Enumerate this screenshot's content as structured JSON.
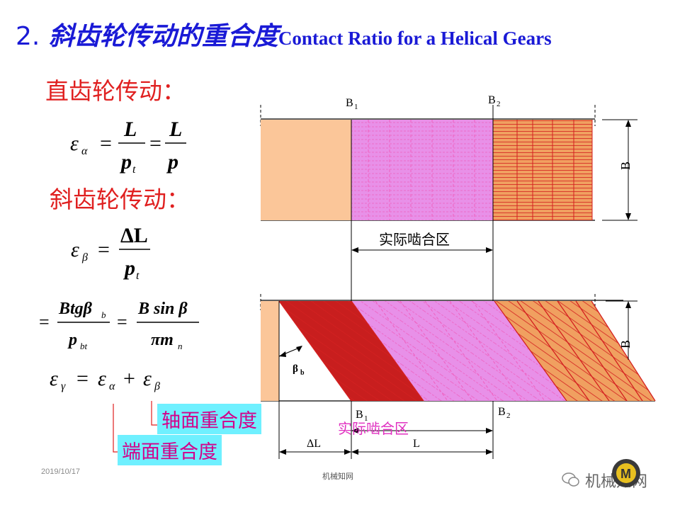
{
  "slide": {
    "title_num": "2.",
    "title_cn": "斜齿轮传动的重合度",
    "title_en": "Contact Ratio for a Helical Gears",
    "spur_heading": "直齿轮传动：",
    "helical_heading": "斜齿轮传动：",
    "eq1": {
      "lhs": "ε",
      "lhs_sub": "α",
      "n1": "L",
      "d1": "p",
      "d1_sub": "t",
      "n2": "L",
      "d2": "p"
    },
    "eq2": {
      "lhs": "ε",
      "lhs_sub": "β",
      "n1": "ΔL",
      "d1": "p",
      "d1_sub": "t"
    },
    "eq3": {
      "n1": "Btgβ",
      "n1_sub": "b",
      "d1": "p",
      "d1_sub": "bt",
      "n2": "B sin β",
      "d2": "πm",
      "d2_sub": "n"
    },
    "eq4": {
      "a": "ε",
      "a_sub": "γ",
      "b": "ε",
      "b_sub": "α",
      "c": "ε",
      "c_sub": "β"
    },
    "tag_axial": "轴面重合度",
    "tag_transverse": "端面重合度",
    "date": "2019/10/17",
    "center_footer": "机械知网",
    "brand": "机械知网"
  },
  "diagram": {
    "top_b1": "B",
    "top_b1_sub": "1",
    "top_b2": "B",
    "top_b2_sub": "2",
    "top_width_label": "B",
    "top_zone": "实际啮合区",
    "bottom_width_label": "B",
    "beta_label": "β",
    "beta_sub": "b",
    "bottom_b1": "B",
    "bottom_b1_sub": "1",
    "bottom_b2": "B",
    "bottom_b2_sub": "2",
    "bottom_zone": "实际啮合区",
    "delta_l": "ΔL",
    "l_label": "L",
    "colors": {
      "peach": "#fbc699",
      "magenta": "#e890e8",
      "orange": "#f0a060",
      "darkred": "#c81e1e",
      "dashed_pink": "#f060c0",
      "red_line": "#d42020"
    }
  }
}
